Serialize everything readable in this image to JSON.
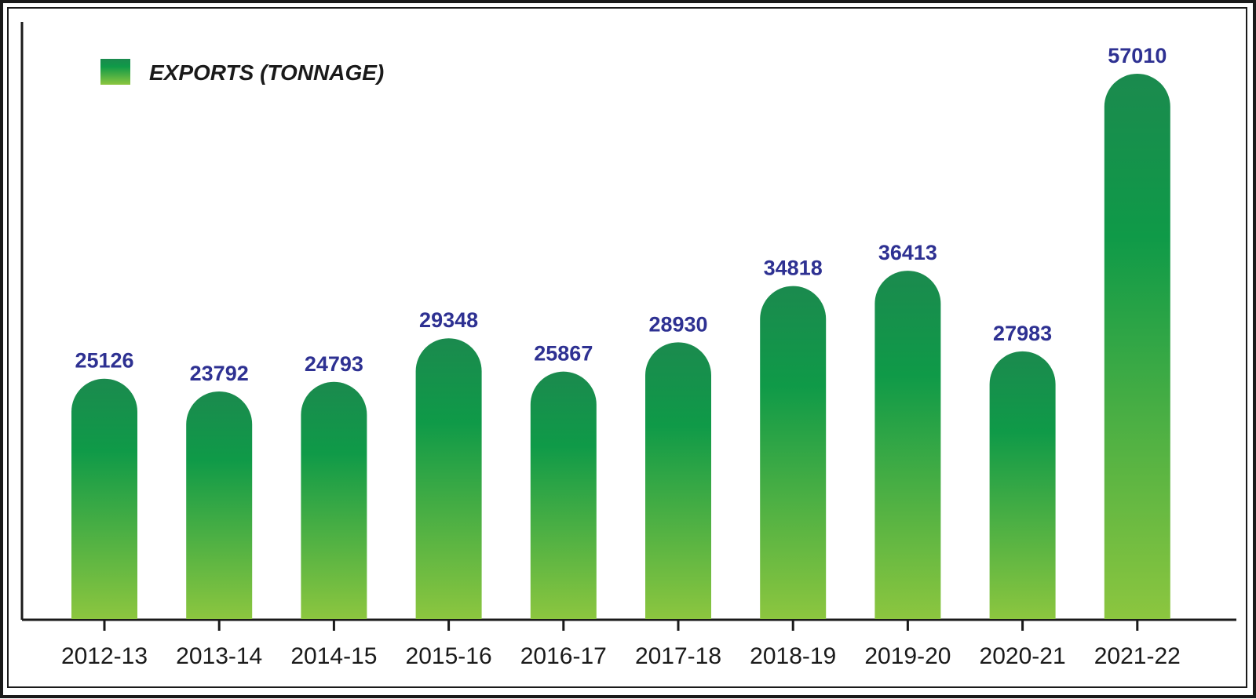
{
  "chart_data": {
    "type": "bar",
    "categories": [
      "2012-13",
      "2013-14",
      "2014-15",
      "2015-16",
      "2016-17",
      "2017-18",
      "2018-19",
      "2019-20",
      "2020-21",
      "2021-22"
    ],
    "series": [
      {
        "name": "EXPORTS (TONNAGE)",
        "values": [
          25126,
          23792,
          24793,
          29348,
          25867,
          28930,
          34818,
          36413,
          27983,
          57010
        ],
        "color_top": "#1b8a4e",
        "color_mid": "#0f9a48",
        "color_bottom": "#8cc63f"
      }
    ],
    "legend_position": "top-left",
    "grid": false,
    "ylim": [
      0,
      57010
    ]
  }
}
